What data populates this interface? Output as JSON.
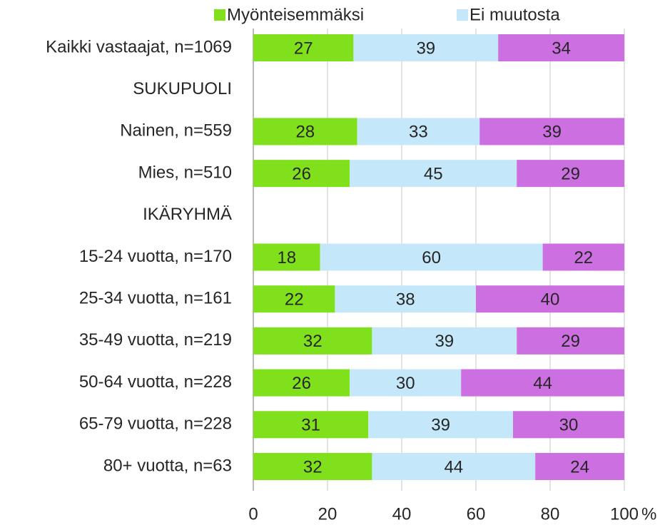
{
  "chart_data": {
    "type": "stacked_barh",
    "categories": [
      "Kaikki vastaajat, n=1069",
      "SUKUPUOLI",
      "Nainen, n=559",
      "Mies, n=510",
      "IKÄRYHMÄ",
      "15-24 vuotta, n=170",
      "25-34 vuotta, n=161",
      "35-49 vuotta, n=219",
      "50-64 vuotta, n=228",
      "65-79 vuotta, n=228",
      "80+ vuotta, n=63"
    ],
    "series": [
      {
        "name": "Myönteisemmäksi",
        "color": "#80e01c",
        "values": [
          27,
          null,
          28,
          26,
          null,
          18,
          22,
          32,
          26,
          31,
          32
        ]
      },
      {
        "name": "Ei muutosta",
        "color": "#c4e8fa",
        "values": [
          39,
          null,
          33,
          45,
          null,
          60,
          38,
          39,
          30,
          39,
          44
        ]
      },
      {
        "color": "#cc6fe0",
        "values": [
          34,
          null,
          39,
          29,
          null,
          22,
          40,
          29,
          44,
          30,
          24
        ]
      }
    ],
    "xlim": [
      0,
      100
    ],
    "xticks": [
      0,
      20,
      40,
      60,
      80,
      100
    ],
    "x_unit": "%",
    "grid": true,
    "legend": "top"
  }
}
